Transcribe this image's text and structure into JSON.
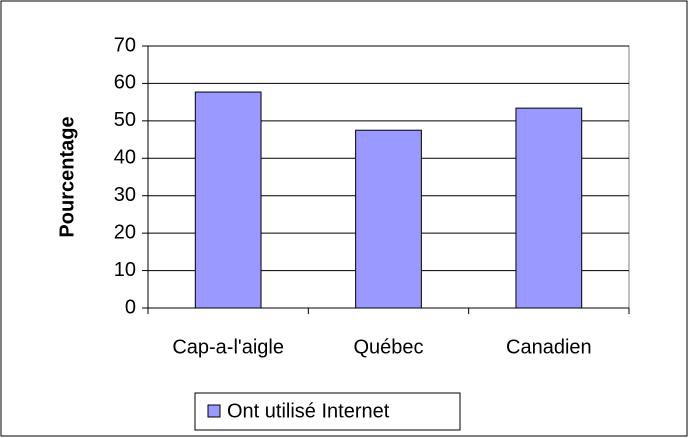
{
  "chart_data": {
    "type": "bar",
    "y_label": "Pourcentage",
    "categories": [
      "Cap-a-l'aigle",
      "Québec",
      "Canadien"
    ],
    "series": [
      {
        "name": "Ont utilisé Internet",
        "color": "#9999ff",
        "values": [
          57.7,
          47.5,
          53.4
        ]
      }
    ],
    "ylim": [
      0,
      70
    ],
    "yticks": [
      0,
      10,
      20,
      30,
      40,
      50,
      60,
      70
    ],
    "grid": true,
    "legend": "bottom"
  }
}
